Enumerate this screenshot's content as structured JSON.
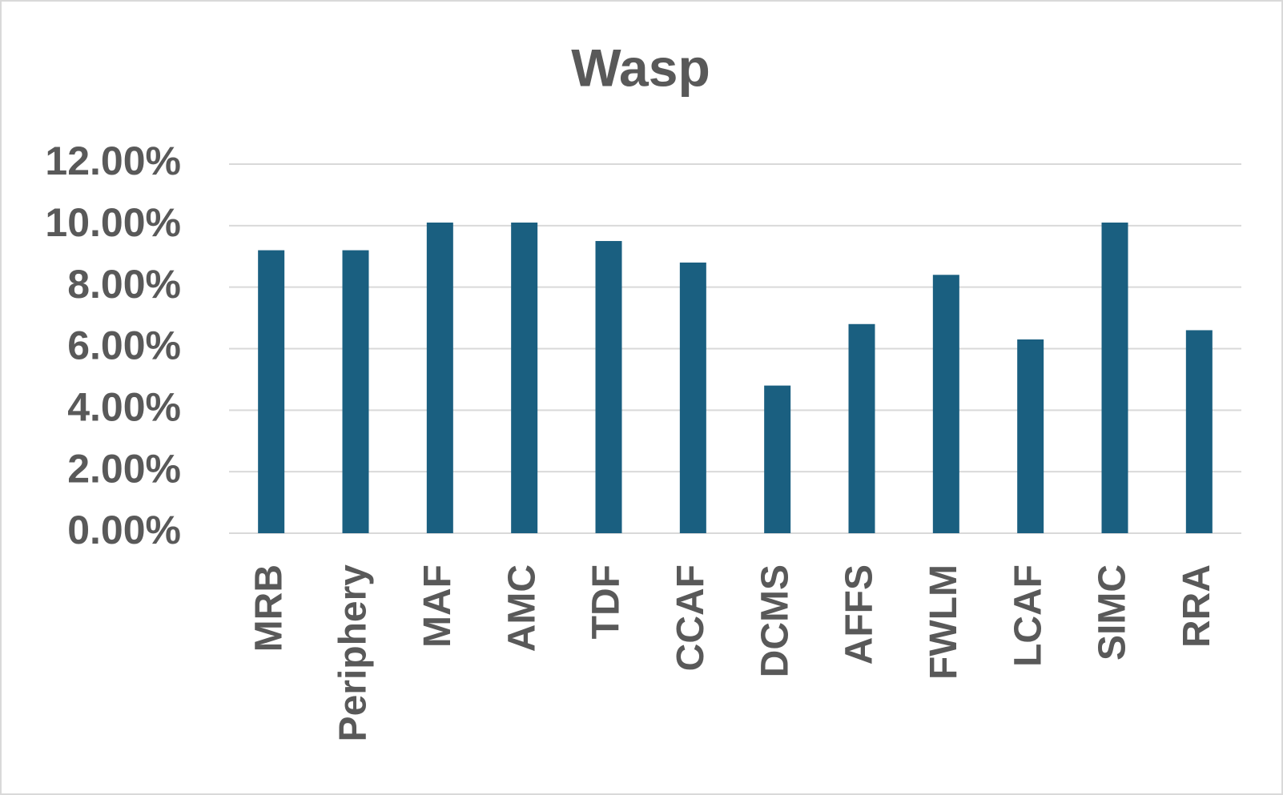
{
  "chart_data": {
    "type": "bar",
    "title": "Wasp",
    "categories": [
      "MRB",
      "Periphery",
      "MAF",
      "AMC",
      "TDF",
      "CCAF",
      "DCMS",
      "AFFS",
      "FWLM",
      "LCAF",
      "SIMC",
      "RRA"
    ],
    "values": [
      9.2,
      9.2,
      10.1,
      10.1,
      9.5,
      8.8,
      4.8,
      6.8,
      8.4,
      6.3,
      10.1,
      6.6
    ],
    "color": "#1a5f80",
    "ylim": [
      0,
      12
    ],
    "yticks": [
      {
        "value": 0,
        "label": "0.00%"
      },
      {
        "value": 2,
        "label": "2.00%"
      },
      {
        "value": 4,
        "label": "4.00%"
      },
      {
        "value": 6,
        "label": "6.00%"
      },
      {
        "value": 8,
        "label": "8.00%"
      },
      {
        "value": 10,
        "label": "10.00%"
      },
      {
        "value": 12,
        "label": "12.00%"
      }
    ],
    "grid": true
  }
}
